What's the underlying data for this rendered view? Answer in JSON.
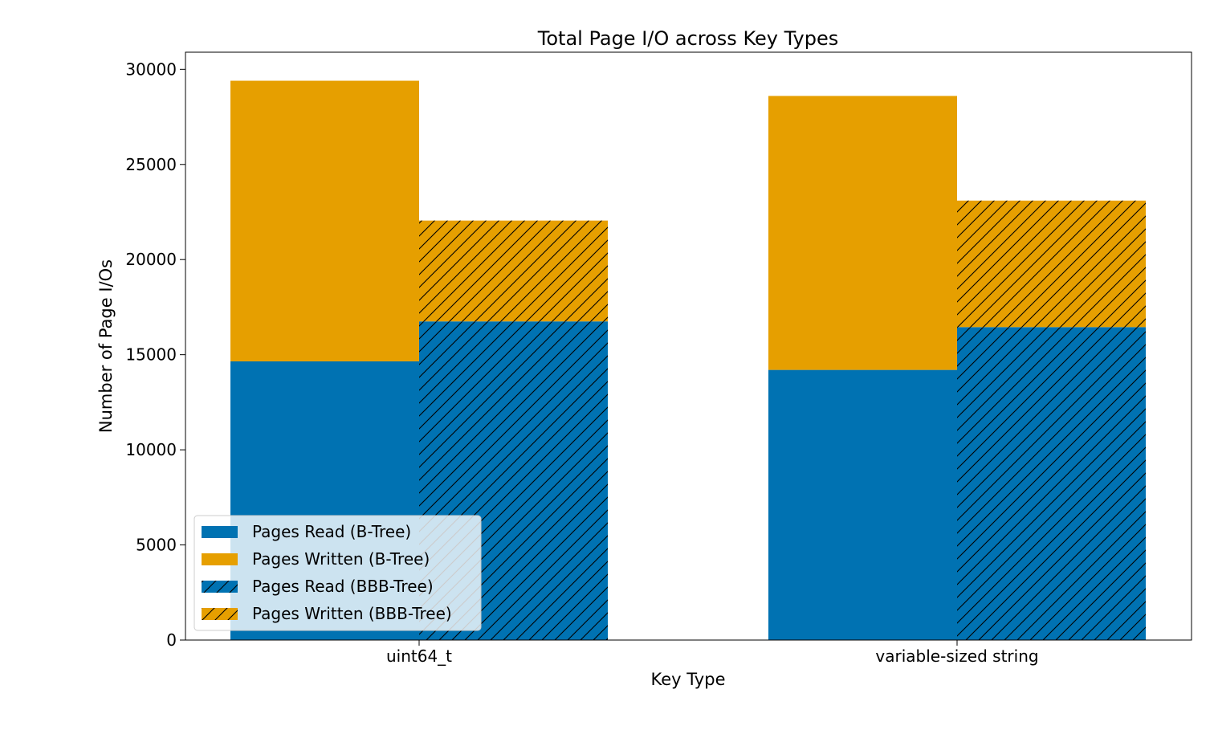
{
  "chart_data": {
    "type": "bar",
    "stacked": true,
    "title": "Total Page I/O across Key Types",
    "xlabel": "Key Type",
    "ylabel": "Number of Page I/Os",
    "categories": [
      "uint64_t",
      "variable-sized string"
    ],
    "ylim": [
      0,
      30900
    ],
    "yticks": [
      0,
      5000,
      10000,
      15000,
      20000,
      25000,
      30000
    ],
    "ytick_labels": [
      "0",
      "5000",
      "10000",
      "15000",
      "20000",
      "25000",
      "30000"
    ],
    "grid": false,
    "legend_position": "lower-left",
    "groups": [
      {
        "name": "B-Tree",
        "hatched": false,
        "series": [
          {
            "name": "Pages Read (B-Tree)",
            "component": "read",
            "color": "#0072B2",
            "values": [
              14650,
              14200
            ]
          },
          {
            "name": "Pages Written (B-Tree)",
            "component": "written",
            "color": "#E69F00",
            "values": [
              14750,
              14400
            ]
          }
        ]
      },
      {
        "name": "BBB-Tree",
        "hatched": true,
        "series": [
          {
            "name": "Pages Read (BBB-Tree)",
            "component": "read",
            "color": "#0072B2",
            "values": [
              16750,
              16450
            ]
          },
          {
            "name": "Pages Written (BBB-Tree)",
            "component": "written",
            "color": "#E69F00",
            "values": [
              5300,
              6650
            ]
          }
        ]
      }
    ]
  }
}
